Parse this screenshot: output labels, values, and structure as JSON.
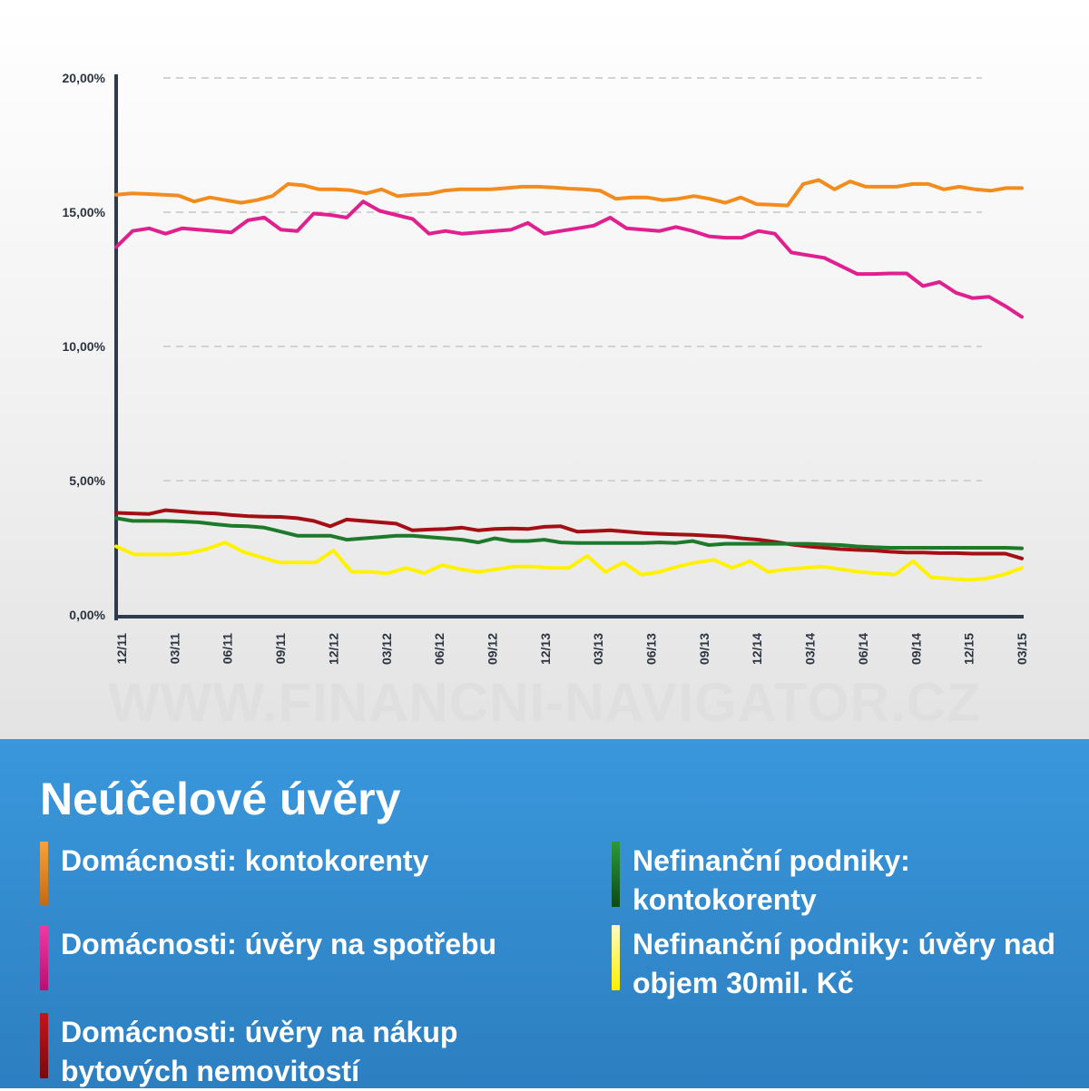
{
  "chart_data": {
    "type": "line",
    "title": "Neúčelové úvěry",
    "ylim": [
      0,
      20
    ],
    "y_ticks": [
      "0,00%",
      "5,00%",
      "10,00%",
      "15,00%",
      "20,00%"
    ],
    "x_tick_labels": [
      "12/11",
      "03/11",
      "06/11",
      "09/11",
      "12/12",
      "03/12",
      "06/12",
      "09/12",
      "12/13",
      "03/13",
      "06/13",
      "09/13",
      "12/14",
      "03/14",
      "06/14",
      "09/14",
      "12/15",
      "03/15"
    ],
    "grid": true,
    "legend_placement": "bottom",
    "series": [
      {
        "name": "Domácnosti: kontokorenty",
        "color": "#f28c1e",
        "values": [
          15.65,
          15.7,
          15.68,
          15.65,
          15.62,
          15.4,
          15.55,
          15.45,
          15.35,
          15.45,
          15.6,
          16.05,
          16.0,
          15.85,
          15.85,
          15.82,
          15.7,
          15.85,
          15.6,
          15.65,
          15.68,
          15.8,
          15.85,
          15.85,
          15.85,
          15.9,
          15.95,
          15.95,
          15.92,
          15.88,
          15.85,
          15.8,
          15.5,
          15.55,
          15.55,
          15.45,
          15.5,
          15.6,
          15.5,
          15.35,
          15.55,
          15.3,
          15.28,
          15.25,
          16.05,
          16.2,
          15.85,
          16.15,
          15.95,
          15.95,
          15.95,
          16.05,
          16.05,
          15.85,
          15.95,
          15.85,
          15.8,
          15.9,
          15.9
        ]
      },
      {
        "name": "Domácnosti: úvěry na spotřebu",
        "color": "#e0208f",
        "values": [
          13.7,
          14.3,
          14.4,
          14.2,
          14.4,
          14.35,
          14.3,
          14.25,
          14.7,
          14.8,
          14.35,
          14.3,
          14.95,
          14.9,
          14.8,
          15.4,
          15.05,
          14.9,
          14.75,
          14.2,
          14.3,
          14.2,
          14.25,
          14.3,
          14.35,
          14.6,
          14.2,
          14.3,
          14.4,
          14.5,
          14.8,
          14.4,
          14.35,
          14.3,
          14.45,
          14.3,
          14.1,
          14.05,
          14.05,
          14.3,
          14.2,
          13.5,
          13.4,
          13.3,
          13.0,
          12.7,
          12.7,
          12.72,
          12.72,
          12.25,
          12.4,
          12.0,
          11.8,
          11.85,
          11.5,
          11.1
        ]
      },
      {
        "name": "Domácnosti: úvěry na nákup bytových nemovitostí",
        "color": "#a30f15",
        "values": [
          3.8,
          3.78,
          3.76,
          3.9,
          3.85,
          3.8,
          3.78,
          3.72,
          3.68,
          3.66,
          3.65,
          3.6,
          3.5,
          3.3,
          3.55,
          3.5,
          3.45,
          3.4,
          3.15,
          3.18,
          3.2,
          3.25,
          3.15,
          3.2,
          3.22,
          3.2,
          3.28,
          3.3,
          3.1,
          3.12,
          3.15,
          3.1,
          3.05,
          3.02,
          3.0,
          2.98,
          2.95,
          2.92,
          2.85,
          2.8,
          2.72,
          2.62,
          2.55,
          2.5,
          2.45,
          2.42,
          2.4,
          2.35,
          2.32,
          2.32,
          2.3,
          2.3,
          2.28,
          2.28,
          2.28,
          2.1
        ]
      },
      {
        "name": "Nefinanční podniky: kontokorenty",
        "color": "#1c7a2a",
        "values": [
          3.6,
          3.5,
          3.5,
          3.5,
          3.48,
          3.45,
          3.38,
          3.32,
          3.3,
          3.25,
          3.1,
          2.95,
          2.95,
          2.95,
          2.8,
          2.85,
          2.9,
          2.95,
          2.95,
          2.9,
          2.85,
          2.8,
          2.7,
          2.85,
          2.75,
          2.75,
          2.8,
          2.7,
          2.68,
          2.68,
          2.68,
          2.68,
          2.68,
          2.7,
          2.68,
          2.75,
          2.6,
          2.65,
          2.65,
          2.65,
          2.65,
          2.65,
          2.65,
          2.62,
          2.6,
          2.55,
          2.52,
          2.5,
          2.5,
          2.5,
          2.5,
          2.5,
          2.5,
          2.5,
          2.5,
          2.48
        ]
      },
      {
        "name": "Nefinanční podniky: úvěry nad objem 30mil. Kč",
        "color": "#fff200",
        "values": [
          2.55,
          2.25,
          2.25,
          2.25,
          2.3,
          2.45,
          2.7,
          2.35,
          2.15,
          1.95,
          1.95,
          1.95,
          2.4,
          1.6,
          1.6,
          1.55,
          1.75,
          1.55,
          1.85,
          1.7,
          1.6,
          1.7,
          1.8,
          1.8,
          1.75,
          1.75,
          2.2,
          1.6,
          1.95,
          1.5,
          1.6,
          1.8,
          1.95,
          2.05,
          1.75,
          2.0,
          1.6,
          1.7,
          1.75,
          1.8,
          1.7,
          1.6,
          1.55,
          1.5,
          2.0,
          1.4,
          1.35,
          1.3,
          1.35,
          1.5,
          1.75
        ]
      }
    ]
  },
  "watermark": "WWW.FINANCNI-NAVIGATOR.CZ"
}
